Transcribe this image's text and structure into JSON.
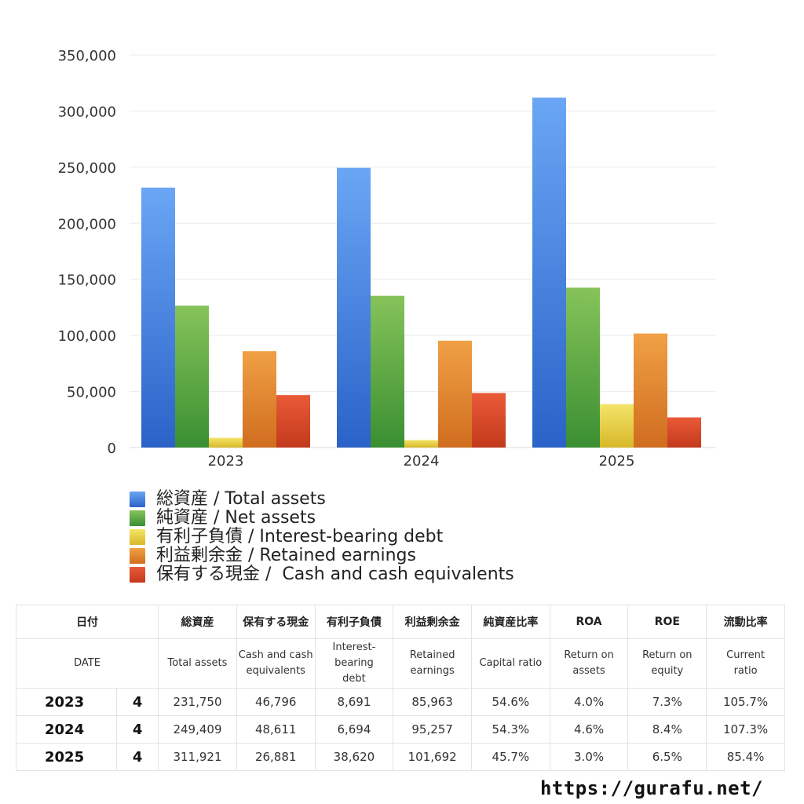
{
  "chart_data": {
    "type": "bar",
    "categories": [
      "2023",
      "2024",
      "2025"
    ],
    "ylim": [
      0,
      350000
    ],
    "yticks": [
      "0",
      "50,000",
      "100,000",
      "150,000",
      "200,000",
      "250,000",
      "300,000",
      "350,000"
    ],
    "ytick_values": [
      0,
      50000,
      100000,
      150000,
      200000,
      250000,
      300000,
      350000
    ],
    "grid": true,
    "legend_placement": "bottom",
    "series": [
      {
        "name": "総資産 / Total assets",
        "values": [
          231750,
          249409,
          311921
        ],
        "color_top": "#6aa6f5",
        "color_bottom": "#2b62c8"
      },
      {
        "name": "純資産 / Net assets",
        "values": [
          126500,
          135300,
          142500
        ],
        "color_top": "#86c35a",
        "color_bottom": "#3a8f32"
      },
      {
        "name": "有利子負債 / Interest-bearing debt",
        "values": [
          8691,
          6694,
          38620
        ],
        "color_top": "#f3e46a",
        "color_bottom": "#d8b828"
      },
      {
        "name": "利益剰余金 / Retained earnings",
        "values": [
          85963,
          95257,
          101692
        ],
        "color_top": "#f0a045",
        "color_bottom": "#d06d1f"
      },
      {
        "name": "保有する現金 /  Cash and cash equivalents",
        "values": [
          46796,
          48611,
          26881
        ],
        "color_top": "#ea5a38",
        "color_bottom": "#c23a1c"
      }
    ]
  },
  "table": {
    "header_jp": [
      "日付",
      "",
      "総資産",
      "保有する現金",
      "有利子負債",
      "利益剰余金",
      "純資産比率",
      "ROA",
      "ROE",
      "流動比率"
    ],
    "header_en": [
      "DATE",
      "",
      "Total assets",
      "Cash and cash\nequivalents",
      "Interest-\nbearing\ndebt",
      "Retained\nearnings",
      "Capital ratio",
      "Return on\nassets",
      "Return on\nequity",
      "Current\nratio"
    ],
    "rows": [
      [
        "2023",
        "4",
        "231,750",
        "46,796",
        "8,691",
        "85,963",
        "54.6%",
        "4.0%",
        "7.3%",
        "105.7%"
      ],
      [
        "2024",
        "4",
        "249,409",
        "48,611",
        "6,694",
        "95,257",
        "54.3%",
        "4.6%",
        "8.4%",
        "107.3%"
      ],
      [
        "2025",
        "4",
        "311,921",
        "26,881",
        "38,620",
        "101,692",
        "45.7%",
        "3.0%",
        "6.5%",
        "85.4%"
      ]
    ]
  },
  "footer": {
    "url": "https://gurafu.net/"
  }
}
